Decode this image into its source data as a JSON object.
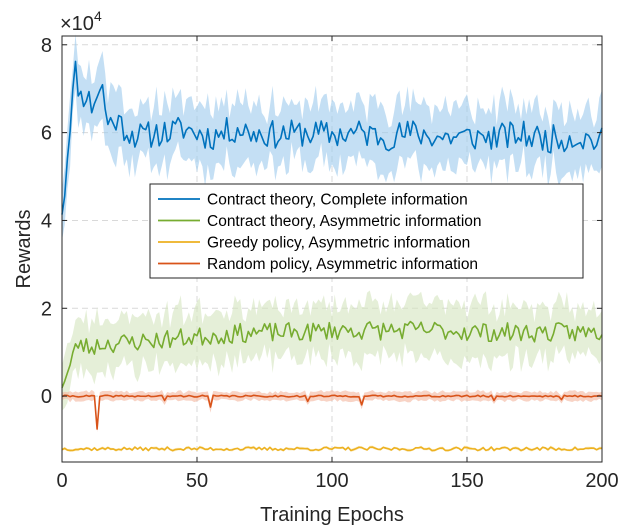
{
  "chart_data": {
    "type": "line",
    "title": "",
    "xlabel": "Training Epochs",
    "ylabel": "Rewards",
    "y_multiplier_label": "×10",
    "y_multiplier_exponent": "4",
    "xlim": [
      0,
      200
    ],
    "ylim": [
      -1.5,
      8.2
    ],
    "x_ticks": [
      0,
      50,
      100,
      150,
      200
    ],
    "x_tick_labels": [
      "0",
      "50",
      "100",
      "150",
      "200"
    ],
    "y_ticks": [
      0,
      2,
      4,
      6,
      8
    ],
    "y_tick_labels": [
      "0",
      "2",
      "4",
      "6",
      "8"
    ],
    "grid": true,
    "legend_position": "center-right",
    "series": [
      {
        "name": "Contract theory, Complete information",
        "color": "#0072BD",
        "band_color": "#9CC9EC",
        "band_halfwidth": 0.68,
        "key_points": [
          [
            0,
            4.3
          ],
          [
            1,
            4.7
          ],
          [
            3,
            6.3
          ],
          [
            5,
            7.4
          ],
          [
            7,
            6.8
          ],
          [
            9,
            6.9
          ],
          [
            11,
            6.6
          ],
          [
            13,
            6.9
          ],
          [
            15,
            7.0
          ],
          [
            17,
            6.2
          ],
          [
            20,
            6.3
          ],
          [
            25,
            6.0
          ],
          [
            30,
            5.9
          ],
          [
            35,
            6.0
          ],
          [
            40,
            6.0
          ],
          [
            45,
            6.1
          ],
          [
            50,
            6.0
          ],
          [
            55,
            5.9
          ],
          [
            60,
            6.0
          ],
          [
            65,
            6.1
          ],
          [
            70,
            6.0
          ],
          [
            80,
            5.95
          ],
          [
            90,
            6.0
          ],
          [
            100,
            5.95
          ],
          [
            110,
            6.0
          ],
          [
            120,
            5.9
          ],
          [
            130,
            6.0
          ],
          [
            140,
            5.9
          ],
          [
            150,
            5.9
          ],
          [
            160,
            5.9
          ],
          [
            170,
            5.95
          ],
          [
            180,
            5.85
          ],
          [
            190,
            5.9
          ],
          [
            200,
            5.8
          ]
        ],
        "noise_amplitude": 0.32,
        "seed": 11
      },
      {
        "name": "Contract theory, Asymmetric information",
        "color": "#77AC30",
        "band_color": "#D3E5BE",
        "band_halfwidth": 0.6,
        "key_points": [
          [
            0,
            0.3
          ],
          [
            2,
            0.5
          ],
          [
            4,
            0.9
          ],
          [
            6,
            1.2
          ],
          [
            10,
            1.1
          ],
          [
            15,
            1.2
          ],
          [
            20,
            1.2
          ],
          [
            30,
            1.25
          ],
          [
            40,
            1.3
          ],
          [
            50,
            1.35
          ],
          [
            60,
            1.4
          ],
          [
            70,
            1.45
          ],
          [
            80,
            1.45
          ],
          [
            90,
            1.45
          ],
          [
            100,
            1.5
          ],
          [
            120,
            1.5
          ],
          [
            140,
            1.5
          ],
          [
            160,
            1.45
          ],
          [
            180,
            1.45
          ],
          [
            200,
            1.45
          ]
        ],
        "noise_amplitude": 0.22,
        "seed": 23
      },
      {
        "name": "Greedy policy, Asymmetric information",
        "color": "#EDB120",
        "band_color": "#F7E2A8",
        "band_halfwidth": 0.03,
        "key_points": [
          [
            0,
            -1.2
          ],
          [
            50,
            -1.2
          ],
          [
            100,
            -1.2
          ],
          [
            150,
            -1.2
          ],
          [
            200,
            -1.2
          ]
        ],
        "noise_amplitude": 0.04,
        "seed": 37
      },
      {
        "name": "Random policy, Asymmetric information",
        "color": "#D95319",
        "band_color": "#F3B59F",
        "band_halfwidth": 0.1,
        "key_points": [
          [
            0,
            0.0
          ],
          [
            50,
            0.0
          ],
          [
            100,
            0.0
          ],
          [
            150,
            0.0
          ],
          [
            200,
            0.0
          ]
        ],
        "noise_amplitude": 0.02,
        "seed": 41,
        "dips": [
          [
            13,
            -0.75
          ],
          [
            55,
            -0.25
          ],
          [
            111,
            -0.2
          ],
          [
            91,
            -0.12
          ],
          [
            38,
            -0.1
          ],
          [
            160,
            -0.1
          ],
          [
            185,
            -0.08
          ]
        ]
      }
    ]
  }
}
